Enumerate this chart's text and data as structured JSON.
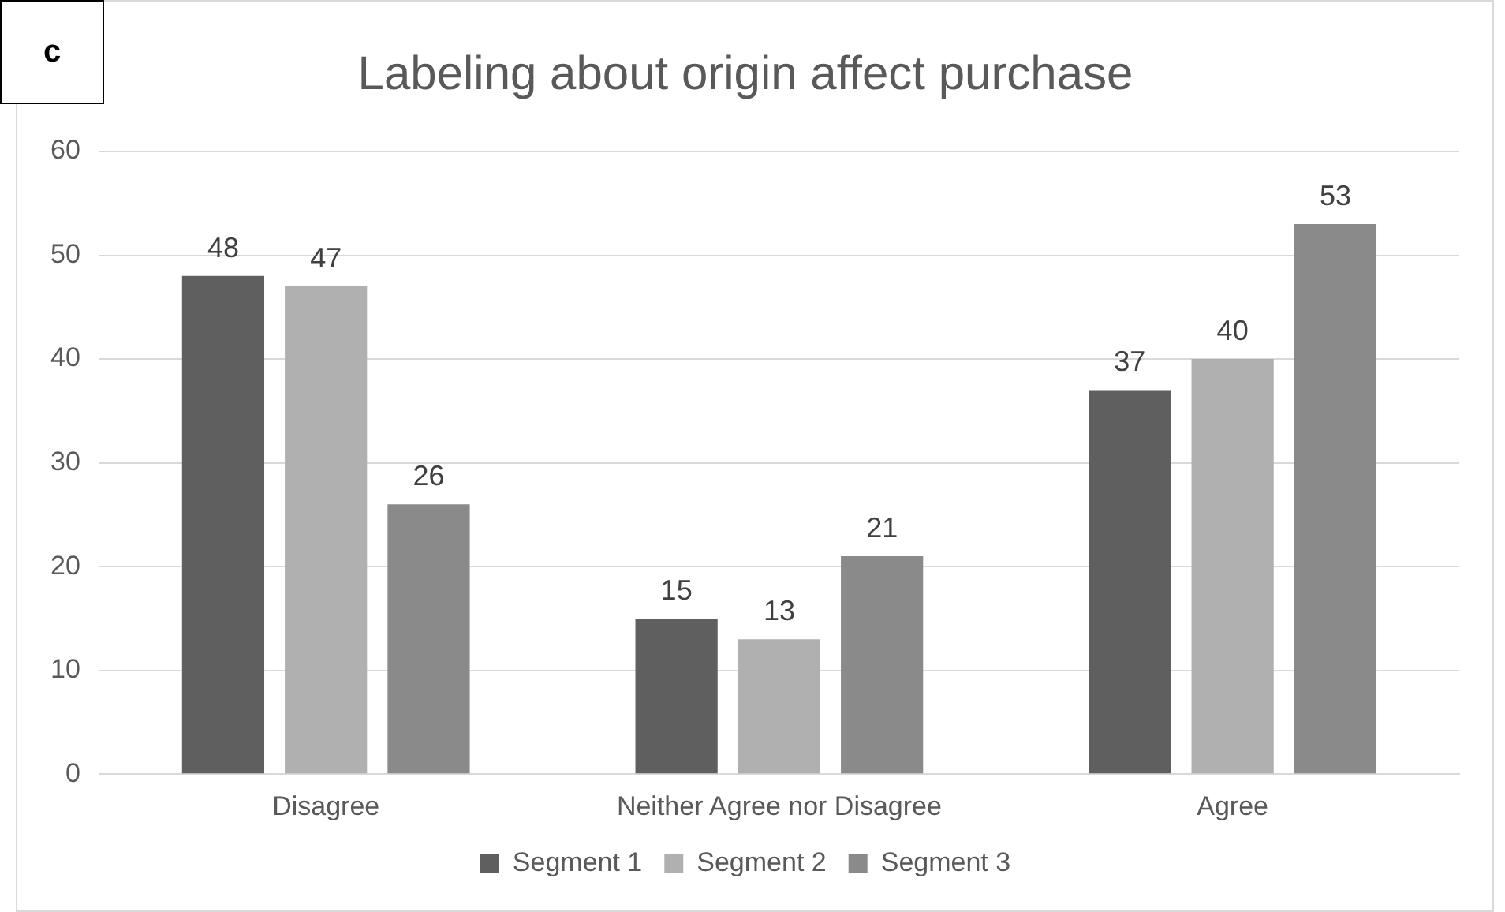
{
  "chart_data": {
    "type": "bar",
    "title": "Labeling about origin affect purchase",
    "annotations": [
      "c"
    ],
    "categories": [
      "Disagree",
      "Neither Agree nor Disagree",
      "Agree"
    ],
    "series": [
      {
        "name": "Segment 1",
        "color": "#5f5f5f",
        "values": [
          48,
          15,
          37
        ]
      },
      {
        "name": "Segment 2",
        "color": "#b0b0b0",
        "values": [
          47,
          13,
          40
        ]
      },
      {
        "name": "Segment 3",
        "color": "#8a8a8a",
        "values": [
          26,
          21,
          53
        ]
      }
    ],
    "ylim": [
      0,
      60
    ],
    "yticks": [
      0,
      10,
      20,
      30,
      40,
      50,
      60
    ],
    "grid": "y",
    "legend": "bottom",
    "data_labels": true
  }
}
